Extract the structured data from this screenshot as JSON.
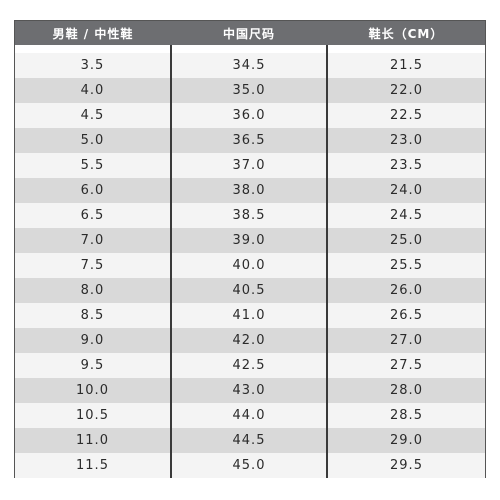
{
  "table": {
    "headers": [
      "男鞋 / 中性鞋",
      "中国尺码",
      "鞋长（CM）"
    ],
    "rows": [
      [
        "3.5",
        "34.5",
        "21.5"
      ],
      [
        "4.0",
        "35.0",
        "22.0"
      ],
      [
        "4.5",
        "36.0",
        "22.5"
      ],
      [
        "5.0",
        "36.5",
        "23.0"
      ],
      [
        "5.5",
        "37.0",
        "23.5"
      ],
      [
        "6.0",
        "38.0",
        "24.0"
      ],
      [
        "6.5",
        "38.5",
        "24.5"
      ],
      [
        "7.0",
        "39.0",
        "25.0"
      ],
      [
        "7.5",
        "40.0",
        "25.5"
      ],
      [
        "8.0",
        "40.5",
        "26.0"
      ],
      [
        "8.5",
        "41.0",
        "26.5"
      ],
      [
        "9.0",
        "42.0",
        "27.0"
      ],
      [
        "9.5",
        "42.5",
        "27.5"
      ],
      [
        "10.0",
        "43.0",
        "28.0"
      ],
      [
        "10.5",
        "44.0",
        "28.5"
      ],
      [
        "11.0",
        "44.5",
        "29.0"
      ],
      [
        "11.5",
        "45.0",
        "29.5"
      ]
    ]
  },
  "colors": {
    "header_bg": "#6d6e71",
    "row_light": "#f4f4f4",
    "row_dark": "#d9d9d9",
    "divider": "#3a3a3a"
  }
}
